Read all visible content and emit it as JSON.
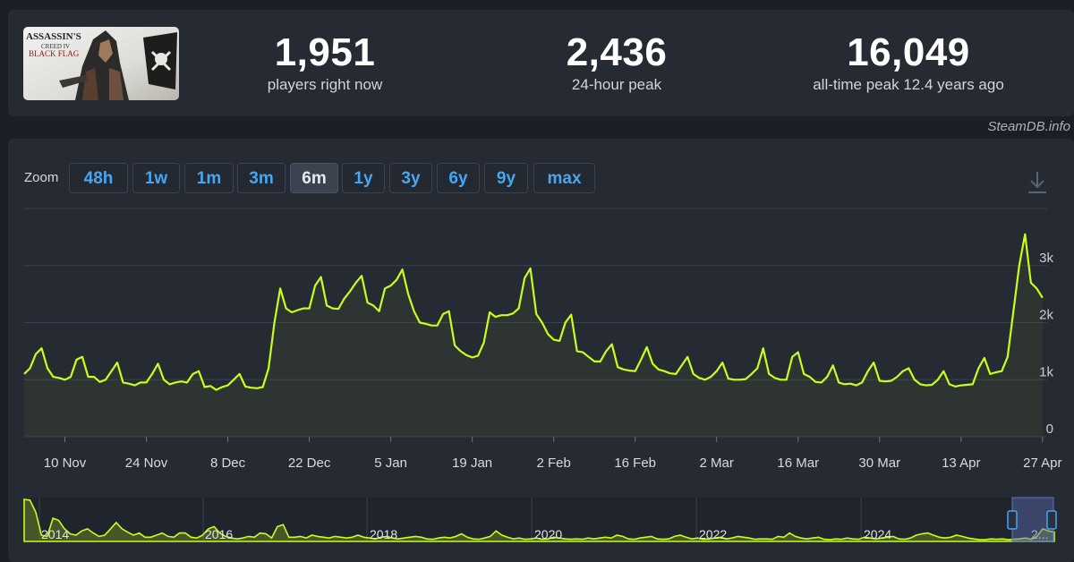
{
  "game": {
    "thumbnail_text": "ASSASSIN'S CREED IV BLACK FLAG"
  },
  "stats": {
    "current": {
      "value": "1,951",
      "label": "players right now"
    },
    "peak24": {
      "value": "2,436",
      "label": "24-hour peak"
    },
    "alltime": {
      "value": "16,049",
      "label": "all-time peak 12.4 years ago"
    }
  },
  "credit": "SteamDB.info",
  "zoom": {
    "label": "Zoom",
    "options": [
      "48h",
      "1w",
      "1m",
      "3m",
      "6m",
      "1y",
      "3y",
      "6y",
      "9y",
      "max"
    ],
    "active": "6m"
  },
  "colors": {
    "line": "#c6ff1a",
    "accent": "#47a6f0",
    "background": "#1b1e25",
    "panel": "#262a33"
  },
  "chart_data": [
    {
      "type": "line",
      "title": "",
      "y_ticks": [
        "0",
        "1k",
        "2k",
        "3k"
      ],
      "ylim": [
        0,
        4000
      ],
      "x_ticks": [
        "10 Nov",
        "24 Nov",
        "8 Dec",
        "22 Dec",
        "5 Jan",
        "19 Jan",
        "2 Feb",
        "16 Feb",
        "2 Mar",
        "16 Mar",
        "30 Mar",
        "13 Apr",
        "27 Apr"
      ],
      "x_tick_days": [
        7,
        21,
        35,
        49,
        63,
        77,
        91,
        105,
        119,
        133,
        147,
        161,
        175
      ],
      "grid": true,
      "series": [
        {
          "points": [
            [
              0,
              1100
            ],
            [
              1,
              1200
            ],
            [
              2,
              1450
            ],
            [
              3,
              1550
            ],
            [
              4,
              1200
            ],
            [
              5,
              1050
            ],
            [
              6,
              1030
            ],
            [
              7,
              1000
            ],
            [
              8,
              1050
            ],
            [
              9,
              1350
            ],
            [
              10,
              1400
            ],
            [
              11,
              1050
            ],
            [
              12,
              1050
            ],
            [
              13,
              960
            ],
            [
              14,
              1000
            ],
            [
              15,
              1150
            ],
            [
              16,
              1300
            ],
            [
              17,
              950
            ],
            [
              18,
              930
            ],
            [
              19,
              900
            ],
            [
              20,
              950
            ],
            [
              21,
              950
            ],
            [
              22,
              1100
            ],
            [
              23,
              1280
            ],
            [
              24,
              1000
            ],
            [
              25,
              920
            ],
            [
              26,
              950
            ],
            [
              27,
              970
            ],
            [
              28,
              950
            ],
            [
              29,
              1100
            ],
            [
              30,
              1150
            ],
            [
              31,
              870
            ],
            [
              32,
              890
            ],
            [
              33,
              820
            ],
            [
              34,
              870
            ],
            [
              35,
              900
            ],
            [
              36,
              1000
            ],
            [
              37,
              1100
            ],
            [
              38,
              880
            ],
            [
              39,
              860
            ],
            [
              40,
              850
            ],
            [
              41,
              870
            ],
            [
              42,
              1200
            ],
            [
              43,
              2000
            ],
            [
              44,
              2600
            ],
            [
              45,
              2250
            ],
            [
              46,
              2180
            ],
            [
              47,
              2220
            ],
            [
              48,
              2250
            ],
            [
              49,
              2250
            ],
            [
              50,
              2650
            ],
            [
              51,
              2800
            ],
            [
              52,
              2300
            ],
            [
              53,
              2250
            ],
            [
              54,
              2240
            ],
            [
              55,
              2420
            ],
            [
              56,
              2550
            ],
            [
              57,
              2700
            ],
            [
              58,
              2820
            ],
            [
              59,
              2350
            ],
            [
              60,
              2300
            ],
            [
              61,
              2200
            ],
            [
              62,
              2600
            ],
            [
              63,
              2650
            ],
            [
              64,
              2750
            ],
            [
              65,
              2930
            ],
            [
              66,
              2500
            ],
            [
              67,
              2200
            ],
            [
              68,
              2000
            ],
            [
              69,
              1980
            ],
            [
              70,
              1950
            ],
            [
              71,
              1950
            ],
            [
              72,
              2150
            ],
            [
              73,
              2200
            ],
            [
              74,
              1600
            ],
            [
              75,
              1500
            ],
            [
              76,
              1430
            ],
            [
              77,
              1390
            ],
            [
              78,
              1420
            ],
            [
              79,
              1650
            ],
            [
              80,
              2180
            ],
            [
              81,
              2100
            ],
            [
              82,
              2130
            ],
            [
              83,
              2130
            ],
            [
              84,
              2160
            ],
            [
              85,
              2250
            ],
            [
              86,
              2780
            ],
            [
              87,
              2950
            ],
            [
              88,
              2150
            ],
            [
              89,
              2000
            ],
            [
              90,
              1800
            ],
            [
              91,
              1700
            ],
            [
              92,
              1680
            ],
            [
              93,
              2000
            ],
            [
              94,
              2140
            ],
            [
              95,
              1500
            ],
            [
              96,
              1480
            ],
            [
              97,
              1400
            ],
            [
              98,
              1320
            ],
            [
              99,
              1320
            ],
            [
              100,
              1500
            ],
            [
              101,
              1620
            ],
            [
              102,
              1220
            ],
            [
              103,
              1180
            ],
            [
              104,
              1160
            ],
            [
              105,
              1150
            ],
            [
              106,
              1350
            ],
            [
              107,
              1570
            ],
            [
              108,
              1280
            ],
            [
              109,
              1180
            ],
            [
              110,
              1150
            ],
            [
              111,
              1110
            ],
            [
              112,
              1100
            ],
            [
              113,
              1250
            ],
            [
              114,
              1400
            ],
            [
              115,
              1100
            ],
            [
              116,
              1030
            ],
            [
              117,
              1000
            ],
            [
              118,
              1050
            ],
            [
              119,
              1150
            ],
            [
              120,
              1300
            ],
            [
              121,
              1020
            ],
            [
              122,
              1000
            ],
            [
              123,
              1000
            ],
            [
              124,
              1010
            ],
            [
              125,
              1100
            ],
            [
              126,
              1200
            ],
            [
              127,
              1550
            ],
            [
              128,
              1100
            ],
            [
              129,
              1030
            ],
            [
              130,
              1000
            ],
            [
              131,
              1000
            ],
            [
              132,
              1400
            ],
            [
              133,
              1480
            ],
            [
              134,
              1100
            ],
            [
              135,
              1050
            ],
            [
              136,
              960
            ],
            [
              137,
              950
            ],
            [
              138,
              1050
            ],
            [
              139,
              1250
            ],
            [
              140,
              950
            ],
            [
              141,
              920
            ],
            [
              142,
              930
            ],
            [
              143,
              900
            ],
            [
              144,
              950
            ],
            [
              145,
              1150
            ],
            [
              146,
              1300
            ],
            [
              147,
              980
            ],
            [
              148,
              970
            ],
            [
              149,
              980
            ],
            [
              150,
              1050
            ],
            [
              151,
              1150
            ],
            [
              152,
              1200
            ],
            [
              153,
              1000
            ],
            [
              154,
              920
            ],
            [
              155,
              900
            ],
            [
              156,
              910
            ],
            [
              157,
              1000
            ],
            [
              158,
              1150
            ],
            [
              159,
              920
            ],
            [
              160,
              880
            ],
            [
              161,
              900
            ],
            [
              162,
              910
            ],
            [
              163,
              920
            ],
            [
              164,
              1200
            ],
            [
              165,
              1380
            ],
            [
              166,
              1100
            ],
            [
              167,
              1130
            ],
            [
              168,
              1150
            ],
            [
              169,
              1400
            ],
            [
              170,
              2200
            ],
            [
              171,
              3000
            ],
            [
              172,
              3550
            ],
            [
              173,
              2700
            ],
            [
              174,
              2600
            ],
            [
              175,
              2436
            ]
          ]
        }
      ]
    },
    {
      "type": "area",
      "title": "",
      "x_ticks": [
        "2014",
        "2016",
        "2018",
        "2020",
        "2022",
        "2024",
        "2..."
      ],
      "series": [
        {
          "values": [
            1.0,
            0.98,
            0.7,
            0.15,
            0.12,
            0.55,
            0.5,
            0.3,
            0.18,
            0.15,
            0.25,
            0.3,
            0.2,
            0.12,
            0.15,
            0.3,
            0.45,
            0.3,
            0.22,
            0.15,
            0.2,
            0.1,
            0.1,
            0.15,
            0.2,
            0.12,
            0.1,
            0.2,
            0.2,
            0.1,
            0.08,
            0.15,
            0.3,
            0.35,
            0.2,
            0.12,
            0.08,
            0.06,
            0.08,
            0.12,
            0.1,
            0.2,
            0.18,
            0.08,
            0.35,
            0.4,
            0.1,
            0.1,
            0.12,
            0.08,
            0.15,
            0.12,
            0.1,
            0.08,
            0.12,
            0.1,
            0.08,
            0.1,
            0.15,
            0.1,
            0.08,
            0.06,
            0.1,
            0.12,
            0.08,
            0.06,
            0.08,
            0.1,
            0.12,
            0.1,
            0.06,
            0.05,
            0.08,
            0.1,
            0.08,
            0.12,
            0.18,
            0.1,
            0.06,
            0.05,
            0.08,
            0.12,
            0.25,
            0.15,
            0.1,
            0.06,
            0.08,
            0.05,
            0.06,
            0.08,
            0.05,
            0.06,
            0.1,
            0.08,
            0.06,
            0.05,
            0.06,
            0.05,
            0.08,
            0.06,
            0.08,
            0.1,
            0.08,
            0.15,
            0.12,
            0.06,
            0.05,
            0.08,
            0.1,
            0.12,
            0.06,
            0.05,
            0.06,
            0.12,
            0.15,
            0.1,
            0.06,
            0.08,
            0.05,
            0.06,
            0.08,
            0.1,
            0.06,
            0.08,
            0.12,
            0.1,
            0.08,
            0.05,
            0.06,
            0.06,
            0.05,
            0.12,
            0.1,
            0.2,
            0.12,
            0.08,
            0.06,
            0.08,
            0.1,
            0.05,
            0.04,
            0.06,
            0.05,
            0.08,
            0.06,
            0.05,
            0.1,
            0.08,
            0.06,
            0.08,
            0.1,
            0.12,
            0.06,
            0.05,
            0.08,
            0.15,
            0.18,
            0.2,
            0.15,
            0.1,
            0.08,
            0.1,
            0.15,
            0.12,
            0.08,
            0.06,
            0.04,
            0.04,
            0.06,
            0.05,
            0.06,
            0.04,
            0.05,
            0.06,
            0.08,
            0.05,
            0.12,
            0.3,
            0.25,
            0.22
          ]
        }
      ]
    }
  ]
}
